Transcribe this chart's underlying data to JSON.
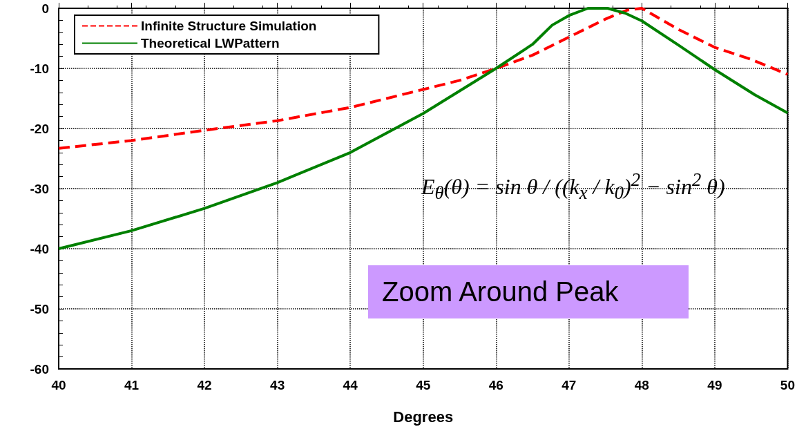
{
  "chart_data": {
    "type": "line",
    "xlabel": "Degrees",
    "xlim": [
      40,
      50
    ],
    "xticks": [
      40,
      41,
      42,
      43,
      44,
      45,
      46,
      47,
      48,
      49,
      50
    ],
    "ylim": [
      -60,
      0
    ],
    "yticks": [
      -60,
      -50,
      -40,
      -30,
      -20,
      -10,
      0
    ],
    "grid": true,
    "legend": "top left",
    "marker": "none",
    "series": [
      {
        "name": "Infinite Structure Simulation",
        "color": "#ff0000",
        "line_style": "dashed",
        "x": [
          40,
          41,
          42,
          43,
          44,
          45,
          45.5,
          46,
          46.5,
          47,
          47.5,
          47.8,
          48,
          48.5,
          49,
          49.5,
          50
        ],
        "values": [
          -23.3,
          -22,
          -20.3,
          -18.7,
          -16.5,
          -13.5,
          -12,
          -10,
          -7.8,
          -4.8,
          -1.8,
          -0.3,
          0,
          -3.5,
          -6.5,
          -8.5,
          -11
        ]
      },
      {
        "name": "Theoretical LWPattern",
        "color": "#008000",
        "line_style": "solid",
        "x": [
          40,
          41,
          42,
          43,
          44,
          45,
          46,
          46.5,
          46.77,
          47,
          47.26,
          47.53,
          47.77,
          48,
          48.5,
          49,
          49.55,
          50
        ],
        "values": [
          -40,
          -37,
          -33.3,
          -29,
          -24,
          -17.5,
          -10,
          -6,
          -2.8,
          -1.2,
          0,
          0,
          -0.8,
          -2.1,
          -6.1,
          -10.2,
          -14.4,
          -17.4
        ]
      }
    ],
    "annotations": [
      "E$_{θ}$(θ) = sin θ / ((k$_{x}$ / k$_{0}$)$^{2}$ − sin$^{2}$ θ)",
      "Zoom Around Peak"
    ]
  }
}
